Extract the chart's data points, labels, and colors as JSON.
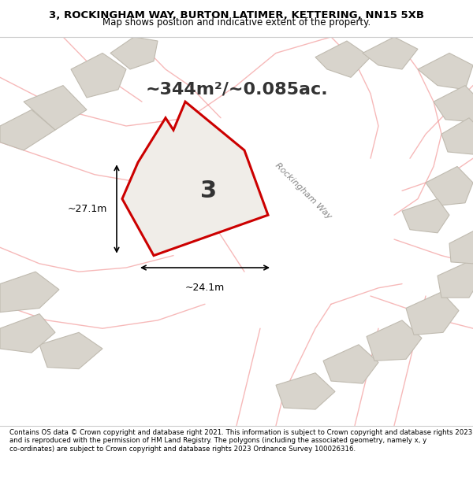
{
  "title_line1": "3, ROCKINGHAM WAY, BURTON LATIMER, KETTERING, NN15 5XB",
  "title_line2": "Map shows position and indicative extent of the property.",
  "area_text": "~344m²/~0.085ac.",
  "plot_number": "3",
  "dim_horizontal": "~24.1m",
  "dim_vertical": "~27.1m",
  "street_label": "Rockingham Way",
  "footer_text": "Contains OS data © Crown copyright and database right 2021. This information is subject to Crown copyright and database rights 2023 and is reproduced with the permission of HM Land Registry. The polygons (including the associated geometry, namely x, y co-ordinates) are subject to Crown copyright and database rights 2023 Ordnance Survey 100026316.",
  "bg_color": "#f0ede8",
  "map_bg": "#f0ede8",
  "plot_fill": "#f0ede8",
  "plot_outline": "#cc0000",
  "road_line_color": "#f08080",
  "neighbor_fill": "#d8d4cc",
  "neighbor_outline": "#c0bbb0",
  "white_bg": "#ffffff",
  "title_area_bg": "#ffffff",
  "footer_area_bg": "#ffffff"
}
